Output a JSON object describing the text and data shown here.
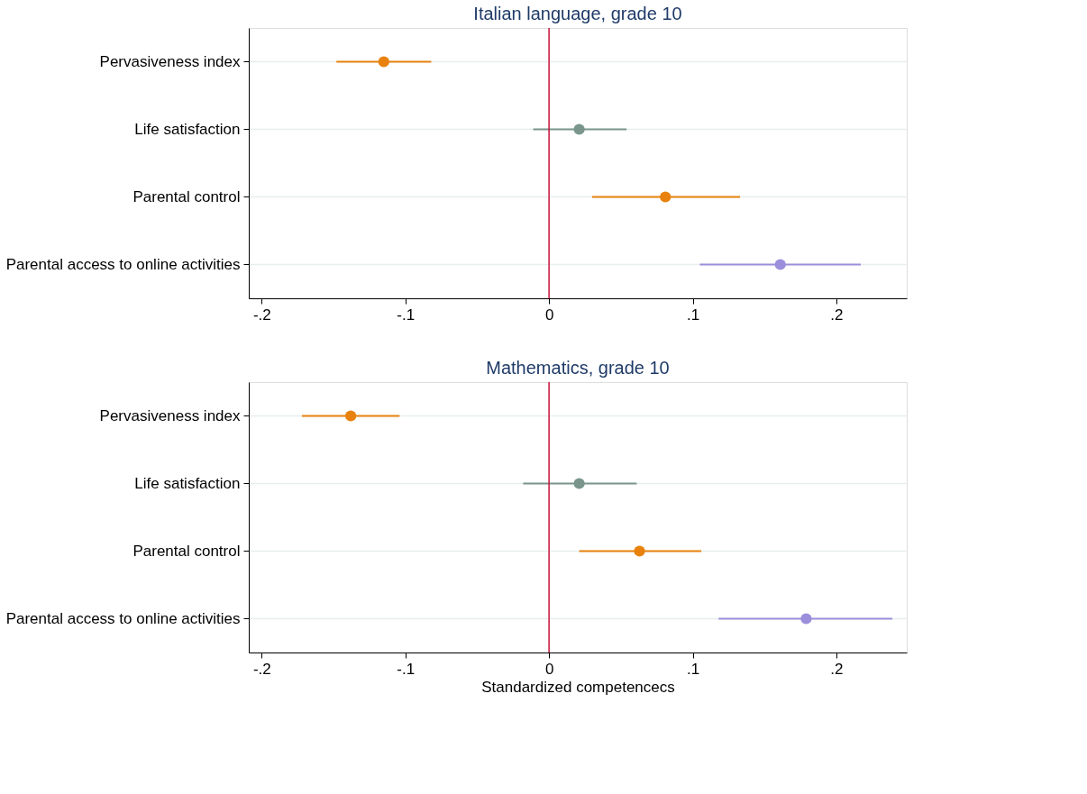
{
  "chart_data": [
    {
      "type": "scatter",
      "orientation": "horizontal",
      "title": "Italian language, grade 10",
      "categories": [
        "Pervasiveness index",
        "Life satisfaction",
        "Parental control",
        "Parental access to online activities"
      ],
      "values": [
        -0.115,
        0.021,
        0.081,
        0.161
      ],
      "errors": [
        [
          -0.148,
          -0.082
        ],
        [
          -0.011,
          0.054
        ],
        [
          0.03,
          0.133
        ],
        [
          0.105,
          0.217
        ]
      ],
      "colors": [
        "#e8820c",
        "#7a968c",
        "#e8820c",
        "#9b8fdc"
      ],
      "xlim": [
        -0.209,
        0.249
      ],
      "xticks": [
        {
          "value": -0.2,
          "label": "-.2"
        },
        {
          "value": -0.1,
          "label": "-.1"
        },
        0,
        {
          "value": 0.1,
          "label": ".1"
        },
        {
          "value": 0.2,
          "label": ".2"
        }
      ],
      "ref_lines": [
        {
          "axis": "x",
          "value": 0,
          "color": "#c8103a"
        }
      ],
      "grid": "y",
      "marker": "circle"
    },
    {
      "type": "scatter",
      "orientation": "horizontal",
      "title": "Mathematics, grade 10",
      "xlabel": "Standardized competencecs",
      "categories": [
        "Pervasiveness index",
        "Life satisfaction",
        "Parental control",
        "Parental access to online activities"
      ],
      "values": [
        -0.138,
        0.021,
        0.063,
        0.179
      ],
      "errors": [
        [
          -0.172,
          -0.104
        ],
        [
          -0.018,
          0.061
        ],
        [
          0.021,
          0.106
        ],
        [
          0.118,
          0.239
        ]
      ],
      "colors": [
        "#e8820c",
        "#7a968c",
        "#e8820c",
        "#9b8fdc"
      ],
      "xlim": [
        -0.209,
        0.249
      ],
      "xticks": [
        {
          "value": -0.2,
          "label": "-.2"
        },
        {
          "value": -0.1,
          "label": "-.1"
        },
        0,
        {
          "value": 0.1,
          "label": ".1"
        },
        {
          "value": 0.2,
          "label": ".2"
        }
      ],
      "ref_lines": [
        {
          "axis": "x",
          "value": 0,
          "color": "#c8103a"
        }
      ],
      "grid": "y",
      "marker": "circle"
    }
  ]
}
